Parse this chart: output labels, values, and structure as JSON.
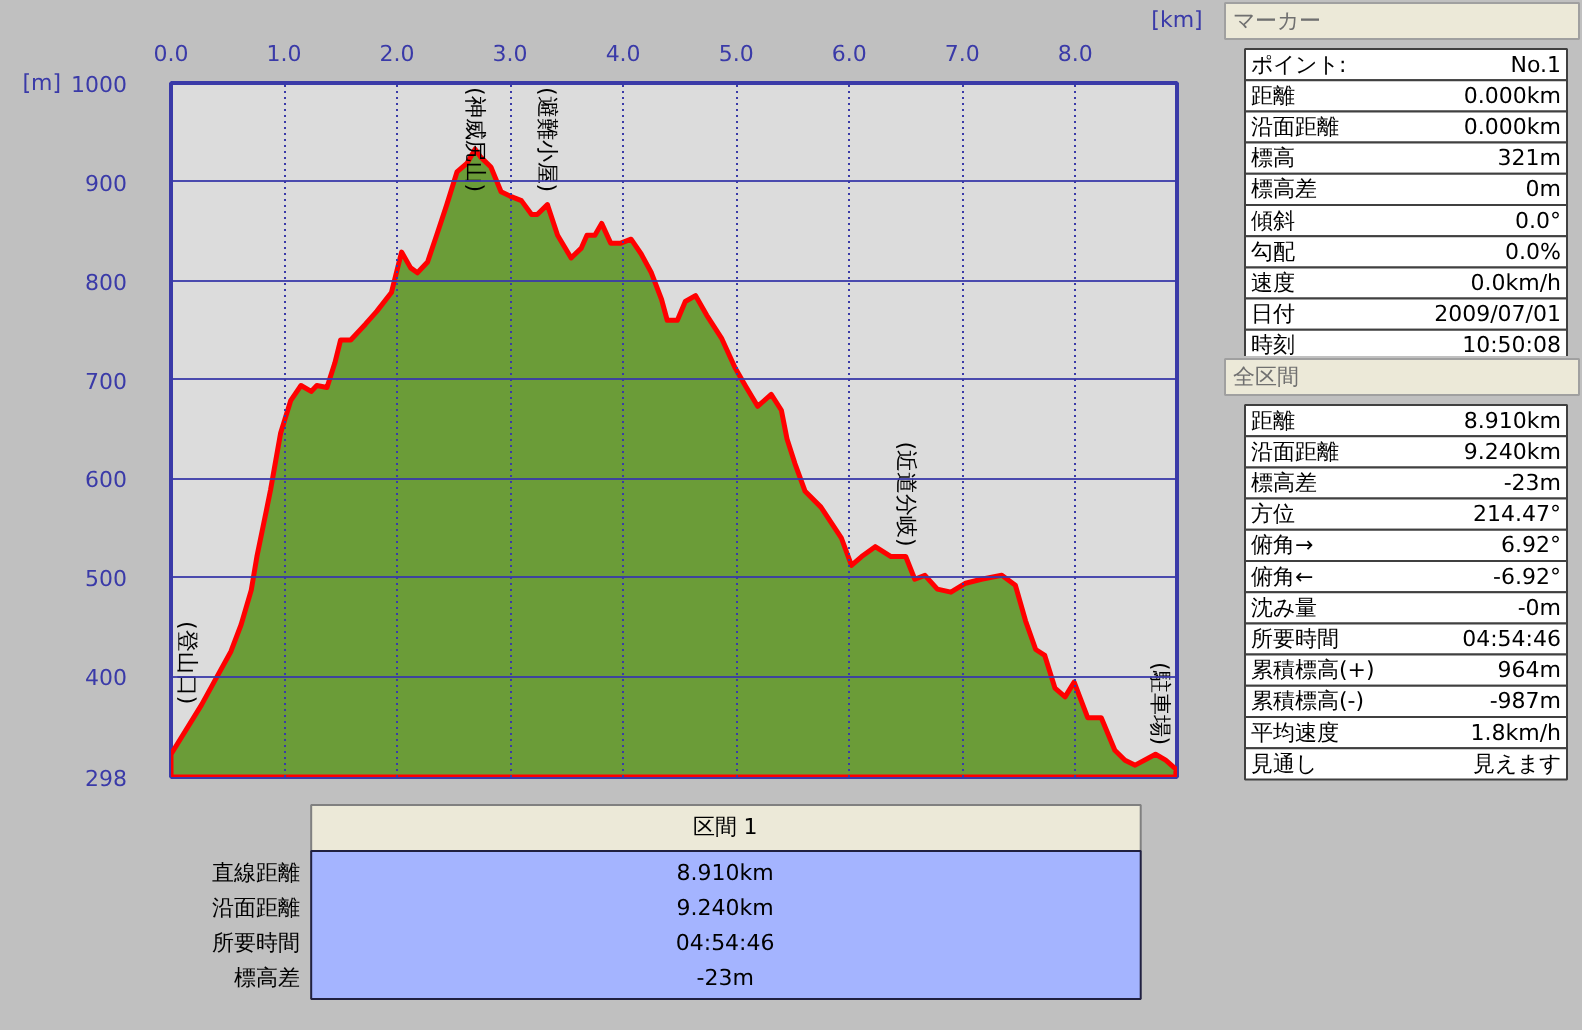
{
  "chart_data": [
    {
      "type": "area",
      "xlabel": "[km]",
      "ylabel": "[m]",
      "color": "#6b9c38",
      "grid": true,
      "x": [
        0,
        0.27,
        0.39,
        0.53,
        0.62,
        0.71,
        0.76,
        0.85,
        0.88,
        0.97,
        1.06,
        1.15,
        1.24,
        1.29,
        1.38,
        1.45,
        1.5,
        1.59,
        1.72,
        1.82,
        1.95,
        2.04,
        2.12,
        2.18,
        2.27,
        2.35,
        2.44,
        2.53,
        2.62,
        2.69,
        2.74,
        2.83,
        2.92,
        3.01,
        3.1,
        3.19,
        3.24,
        3.33,
        3.42,
        3.54,
        3.63,
        3.68,
        3.75,
        3.81,
        3.89,
        3.98,
        4.07,
        4.16,
        4.25,
        4.34,
        4.39,
        4.48,
        4.55,
        4.64,
        4.74,
        4.87,
        4.99,
        5.08,
        5.19,
        5.31,
        5.4,
        5.45,
        5.52,
        5.61,
        5.75,
        5.93,
        6.02,
        6.11,
        6.23,
        6.37,
        6.5,
        6.58,
        6.67,
        6.78,
        6.9,
        7.03,
        7.17,
        7.35,
        7.47,
        7.56,
        7.65,
        7.73,
        7.82,
        7.91,
        7.99,
        8.11,
        8.23,
        8.35,
        8.44,
        8.53,
        8.71,
        8.8,
        8.89
      ],
      "values": [
        321,
        371,
        396,
        425,
        452,
        487,
        521,
        571,
        588,
        646,
        679,
        694,
        688,
        694,
        692,
        717,
        740,
        740,
        756,
        769,
        788,
        829,
        813,
        808,
        819,
        846,
        877,
        910,
        919,
        933,
        925,
        915,
        890,
        885,
        881,
        867,
        867,
        877,
        846,
        823,
        833,
        846,
        846,
        858,
        838,
        838,
        842,
        827,
        808,
        781,
        760,
        760,
        779,
        785,
        765,
        742,
        712,
        694,
        673,
        685,
        669,
        640,
        615,
        587,
        571,
        540,
        512,
        521,
        531,
        521,
        521,
        498,
        502,
        488,
        485,
        494,
        498,
        502,
        492,
        456,
        427,
        421,
        388,
        379,
        394,
        358,
        358,
        325,
        315,
        310,
        321,
        315,
        306
      ],
      "xlim": [
        0,
        8.9
      ],
      "ylim": [
        298,
        1000
      ],
      "xticks": [
        {
          "value": 0,
          "label": "0.0"
        },
        {
          "value": 1,
          "label": "1.0"
        },
        {
          "value": 2,
          "label": "2.0"
        },
        {
          "value": 3,
          "label": "3.0"
        },
        {
          "value": 4,
          "label": "4.0"
        },
        {
          "value": 5,
          "label": "5.0"
        },
        {
          "value": 6,
          "label": "6.0"
        },
        {
          "value": 7,
          "label": "7.0"
        },
        {
          "value": 8,
          "label": "8.0"
        }
      ],
      "yticks": [
        298,
        400,
        500,
        600,
        700,
        800,
        900,
        1000
      ],
      "annotations": [
        {
          "text": "(神威尻山)",
          "x": 2.69,
          "y": 933
        },
        {
          "text": "(避難小屋)",
          "x": 3.33,
          "y": 877
        },
        {
          "text": "(近道分岐)",
          "x": 6.5,
          "y": 521
        },
        {
          "text": "(登山口)",
          "x": 0,
          "y": 321
        },
        {
          "text": "(駐車場)",
          "x": 8.89,
          "y": 306
        }
      ]
    },
    {
      "type": "other",
      "title": "区間 1",
      "annotations": [
        "直線距離",
        "8.910km",
        "沿面距離",
        "9.240km",
        "所要時間",
        "04:54:46",
        "標高差",
        "-23m"
      ]
    },
    {
      "type": "other",
      "title": "マーカー",
      "annotations": [
        "ポイント:",
        "No.1",
        "距離",
        "0.000km",
        "沿面距離",
        "0.000km",
        "標高",
        "321m",
        "標高差",
        "0m",
        "傾斜",
        "0.0°",
        "勾配",
        "0.0%",
        "速度",
        "0.0km/h",
        "日付",
        "2009/07/01",
        "時刻",
        "10:50:08"
      ]
    },
    {
      "type": "other",
      "title": "全区間",
      "annotations": [
        "距離",
        "8.910km",
        "沿面距離",
        "9.240km",
        "標高差",
        "-23m",
        "方位",
        "214.47°",
        "俯角→",
        "6.92°",
        "俯角←",
        "-6.92°",
        "沈み量",
        "-0m",
        "所要時間",
        "04:54:46",
        "累積標高(+)",
        "964m",
        "累積標高(-)",
        "-987m",
        "平均速度",
        "1.8km/h",
        "見通し",
        "見えます"
      ]
    }
  ]
}
